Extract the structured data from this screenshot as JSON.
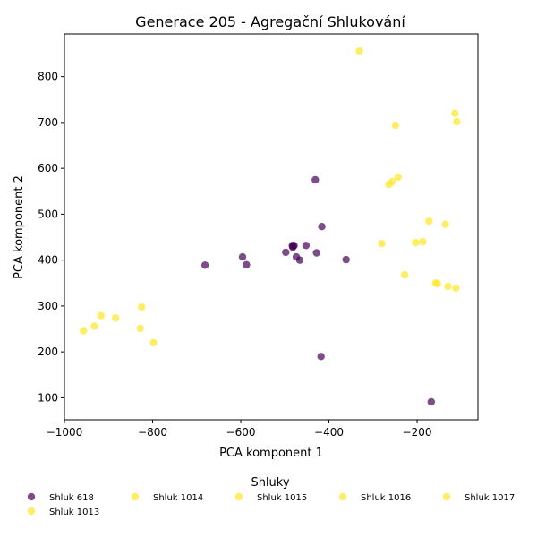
{
  "chart_data": {
    "type": "scatter",
    "title": "Generace 205 - Agregační Shlukování",
    "xlabel": "PCA komponent 1",
    "ylabel": "PCA komponent 2",
    "xlim": [
      -1000,
      -62
    ],
    "ylim": [
      52,
      893
    ],
    "xticks": [
      -1000,
      -800,
      -600,
      -400,
      -200
    ],
    "xtick_labels": [
      "−1000",
      "−800",
      "−600",
      "−400",
      "−200"
    ],
    "yticks": [
      100,
      200,
      300,
      400,
      500,
      600,
      700,
      800
    ],
    "ytick_labels": [
      "100",
      "200",
      "300",
      "400",
      "500",
      "600",
      "700",
      "800"
    ],
    "grid": false,
    "legend_title": "Shluky",
    "legend_placement": "bottom",
    "colors": {
      "purple": "#440154",
      "yellow": "#fde725"
    },
    "series": [
      {
        "name": "Shluk 618",
        "color": "#440154",
        "points": [
          [
            -681,
            389
          ],
          [
            -596,
            407
          ],
          [
            -587,
            390
          ],
          [
            -498,
            417
          ],
          [
            -483,
            432
          ],
          [
            -481,
            430
          ],
          [
            -479,
            432
          ],
          [
            -482,
            428
          ],
          [
            -474,
            407
          ],
          [
            -466,
            400
          ],
          [
            -452,
            432
          ],
          [
            -428,
            416
          ],
          [
            -431,
            575
          ],
          [
            -416,
            473
          ],
          [
            -361,
            401
          ],
          [
            -418,
            190
          ],
          [
            -168,
            91
          ]
        ]
      },
      {
        "name": "Shluk 1013",
        "color": "#fde725",
        "points": [
          [
            -957,
            246
          ],
          [
            -932,
            256
          ],
          [
            -917,
            279
          ],
          [
            -884,
            274
          ],
          [
            -828,
            251
          ],
          [
            -825,
            298
          ],
          [
            -798,
            220
          ]
        ]
      },
      {
        "name": "Shluk 1014",
        "color": "#fde725",
        "points": [
          [
            -331,
            856
          ],
          [
            -249,
            694
          ],
          [
            -114,
            720
          ],
          [
            -110,
            702
          ]
        ]
      },
      {
        "name": "Shluk 1015",
        "color": "#fde725",
        "points": [
          [
            -264,
            565
          ],
          [
            -256,
            571
          ],
          [
            -243,
            581
          ]
        ]
      },
      {
        "name": "Shluk 1016",
        "color": "#fde725",
        "points": [
          [
            -280,
            436
          ],
          [
            -203,
            438
          ],
          [
            -187,
            440
          ],
          [
            -173,
            485
          ],
          [
            -136,
            478
          ]
        ]
      },
      {
        "name": "Shluk 1017",
        "color": "#fde725",
        "points": [
          [
            -228,
            368
          ],
          [
            -158,
            350
          ],
          [
            -154,
            349
          ],
          [
            -130,
            343
          ],
          [
            -112,
            339
          ]
        ]
      }
    ]
  }
}
